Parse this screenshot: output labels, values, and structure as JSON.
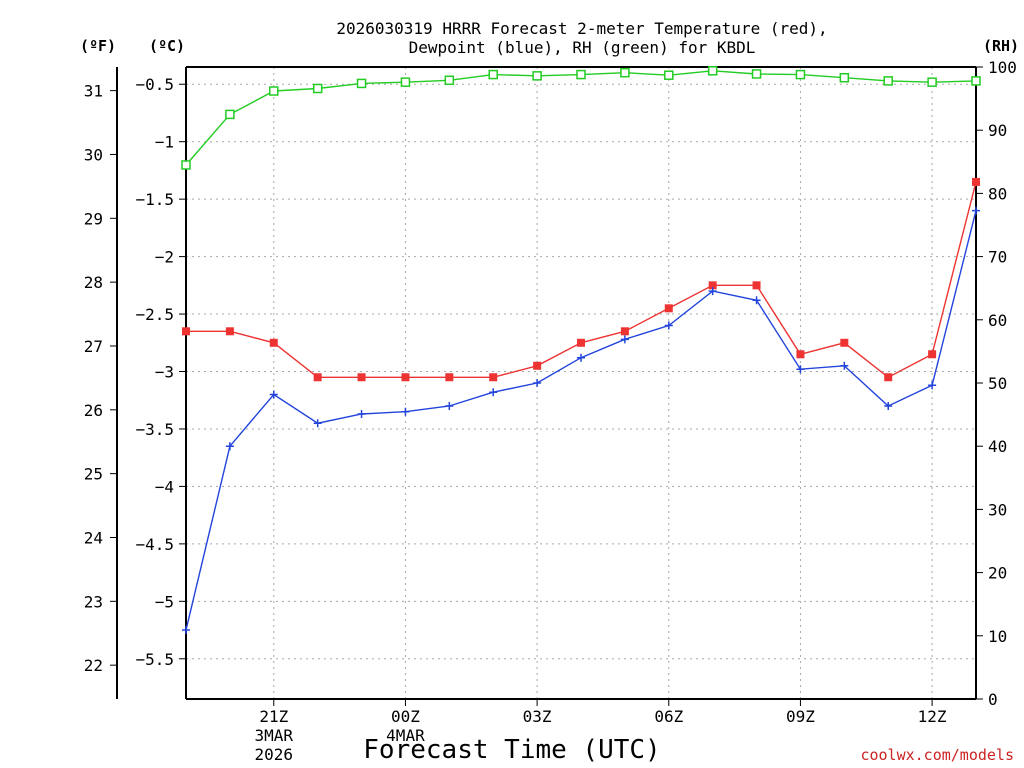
{
  "chart_data": {
    "type": "line",
    "title": [
      "2026030319 HRRR Forecast 2-meter Temperature (red),",
      "Dewpoint (blue), RH (green) for KBDL"
    ],
    "xlabel": "Forecast Time (UTC)",
    "watermark": "coolwx.com/models",
    "units": {
      "left_f": "(ºF)",
      "left_c": "(ºC)",
      "right_rh": "(RH)"
    },
    "x_hours": [
      0,
      1,
      2,
      3,
      4,
      5,
      6,
      7,
      8,
      9,
      10,
      11,
      12,
      13,
      14,
      15,
      16,
      17,
      18
    ],
    "x_ticks": [
      {
        "hour": 2,
        "lines": [
          "21Z",
          "3MAR",
          "2026"
        ]
      },
      {
        "hour": 5,
        "lines": [
          "00Z",
          "4MAR"
        ]
      },
      {
        "hour": 8,
        "lines": [
          "03Z"
        ]
      },
      {
        "hour": 11,
        "lines": [
          "06Z"
        ]
      },
      {
        "hour": 14,
        "lines": [
          "09Z"
        ]
      },
      {
        "hour": 17,
        "lines": [
          "12Z"
        ]
      }
    ],
    "y_celsius": {
      "range": [
        -5.85,
        -0.35
      ],
      "ticks": [
        "-0.5",
        "-1",
        "-1.5",
        "-2",
        "-2.5",
        "-3",
        "-3.5",
        "-4",
        "-4.5",
        "-5",
        "-5.5"
      ]
    },
    "y_fahrenheit": {
      "ticks": [
        "22",
        "23",
        "24",
        "25",
        "26",
        "27",
        "28",
        "29",
        "30",
        "31"
      ]
    },
    "y_rh": {
      "range": [
        0,
        100
      ],
      "ticks": [
        "0",
        "10",
        "20",
        "30",
        "40",
        "50",
        "60",
        "70",
        "80",
        "90",
        "100"
      ]
    },
    "series": [
      {
        "name": "2-meter Temperature",
        "unit": "C",
        "color": "#ee3333",
        "marker": "filled-square",
        "values": [
          -2.65,
          -2.65,
          -2.75,
          -3.05,
          -3.05,
          -3.05,
          -3.05,
          -3.05,
          -2.95,
          -2.75,
          -2.65,
          -2.45,
          -2.25,
          -2.25,
          -2.85,
          -2.75,
          -3.05,
          -2.85,
          -1.35
        ]
      },
      {
        "name": "Dewpoint",
        "unit": "C",
        "color": "#2244dd",
        "marker": "plus",
        "values": [
          -5.25,
          -3.65,
          -3.2,
          -3.45,
          -3.37,
          -3.35,
          -3.3,
          -3.18,
          -3.1,
          -2.88,
          -2.72,
          -2.6,
          -2.3,
          -2.38,
          -2.98,
          -2.95,
          -3.3,
          -3.12,
          -1.6
        ]
      },
      {
        "name": "Relative Humidity",
        "unit": "%",
        "color": "#22cc22",
        "marker": "open-square",
        "values": [
          84.5,
          92.5,
          96.2,
          96.6,
          97.4,
          97.6,
          97.9,
          98.8,
          98.6,
          98.8,
          99.1,
          98.7,
          99.4,
          98.9,
          98.8,
          98.3,
          97.8,
          97.6,
          97.8
        ]
      }
    ]
  }
}
